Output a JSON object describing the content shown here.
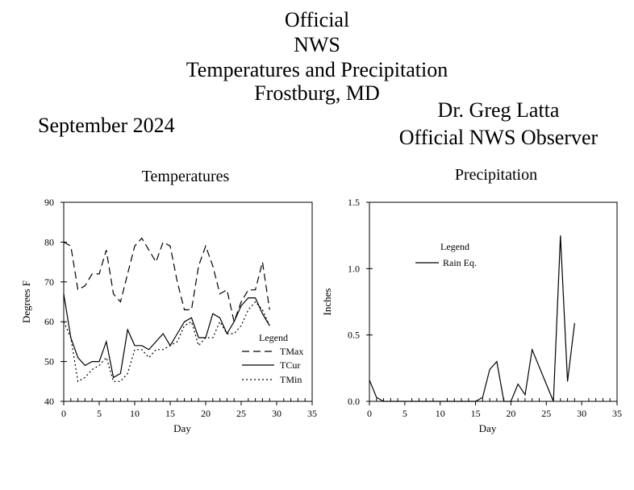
{
  "header": {
    "title_lines": [
      "Official",
      "NWS",
      "Temperatures and Precipitation",
      "Frostburg, MD"
    ],
    "month": "September 2024",
    "observer_name": "Dr. Greg Latta",
    "observer_title": "Official NWS Observer"
  },
  "chart_data": [
    {
      "type": "line",
      "title": "Temperatures",
      "xlabel": "Day",
      "ylabel": "Degrees F",
      "xlim": [
        0,
        35
      ],
      "ylim": [
        40,
        90
      ],
      "xticks": [
        0,
        5,
        10,
        15,
        20,
        25,
        30,
        35
      ],
      "yticks": [
        40,
        50,
        60,
        70,
        80,
        90
      ],
      "grid": false,
      "legend": {
        "title": "Legend",
        "placement": "bottom-right"
      },
      "series": [
        {
          "name": "TMax",
          "style": "dashed",
          "x": [
            0,
            1,
            2,
            3,
            4,
            5,
            6,
            7,
            8,
            9,
            10,
            11,
            12,
            13,
            14,
            15,
            16,
            17,
            18,
            19,
            20,
            21,
            22,
            23,
            24,
            25,
            26,
            27,
            28,
            29
          ],
          "y": [
            80,
            79,
            68,
            69,
            72,
            72,
            78,
            67,
            65,
            72,
            79,
            81,
            78,
            75,
            80,
            79,
            70,
            63,
            63,
            74,
            79,
            74,
            67,
            68,
            60,
            65,
            68,
            68,
            75,
            63
          ]
        },
        {
          "name": "TCur",
          "style": "solid",
          "x": [
            0,
            1,
            2,
            3,
            4,
            5,
            6,
            7,
            8,
            9,
            10,
            11,
            12,
            13,
            14,
            15,
            16,
            17,
            18,
            19,
            20,
            21,
            22,
            23,
            24,
            25,
            26,
            27,
            28,
            29
          ],
          "y": [
            67,
            56,
            51,
            49,
            50,
            50,
            55,
            46,
            47,
            58,
            54,
            54,
            53,
            55,
            57,
            54,
            57,
            60,
            61,
            56,
            56,
            62,
            61,
            57,
            60,
            64,
            66,
            66,
            62,
            59
          ]
        },
        {
          "name": "TMin",
          "style": "dotted",
          "x": [
            0,
            1,
            2,
            3,
            4,
            5,
            6,
            7,
            8,
            9,
            10,
            11,
            12,
            13,
            14,
            15,
            16,
            17,
            18,
            19,
            20,
            21,
            22,
            23,
            24,
            25,
            26,
            27,
            28,
            29
          ],
          "y": [
            60,
            56,
            45,
            46,
            48,
            49,
            51,
            45,
            45,
            47,
            53,
            53,
            51,
            53,
            53,
            54,
            55,
            59,
            60,
            54,
            56,
            56,
            60,
            57,
            57,
            59,
            63,
            65,
            63,
            59
          ]
        }
      ]
    },
    {
      "type": "line",
      "title": "Precipitation",
      "xlabel": "Day",
      "ylabel": "Inches",
      "xlim": [
        0,
        35
      ],
      "ylim": [
        0,
        1.5
      ],
      "xticks": [
        0,
        5,
        10,
        15,
        20,
        25,
        30,
        35
      ],
      "yticks": [
        0.0,
        0.5,
        1.0,
        1.5
      ],
      "ytick_labels": [
        "0.0",
        "0.5",
        "1.0",
        "1.5"
      ],
      "grid": false,
      "legend": {
        "title": "Legend",
        "placement": "top-left"
      },
      "series": [
        {
          "name": "Rain Eq.",
          "style": "solid",
          "x": [
            0,
            1,
            2,
            3,
            4,
            5,
            6,
            7,
            8,
            9,
            10,
            11,
            12,
            13,
            14,
            15,
            16,
            17,
            18,
            19,
            20,
            21,
            22,
            23,
            24,
            25,
            26,
            27,
            28,
            29
          ],
          "y": [
            0.16,
            0.03,
            0,
            0,
            0,
            0,
            0,
            0,
            0,
            0,
            0,
            0,
            0,
            0,
            0,
            0,
            0.03,
            0.24,
            0.3,
            0,
            0,
            0.13,
            0.05,
            0.39,
            0.26,
            0.13,
            0,
            1.25,
            0.15,
            0.59
          ]
        }
      ]
    }
  ]
}
